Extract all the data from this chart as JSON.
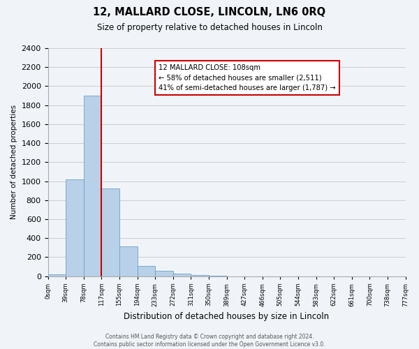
{
  "title": "12, MALLARD CLOSE, LINCOLN, LN6 0RQ",
  "subtitle": "Size of property relative to detached houses in Lincoln",
  "xlabel": "Distribution of detached houses by size in Lincoln",
  "ylabel": "Number of detached properties",
  "bin_labels": [
    "0sqm",
    "39sqm",
    "78sqm",
    "117sqm",
    "155sqm",
    "194sqm",
    "233sqm",
    "272sqm",
    "311sqm",
    "350sqm",
    "389sqm",
    "427sqm",
    "466sqm",
    "505sqm",
    "544sqm",
    "583sqm",
    "622sqm",
    "661sqm",
    "700sqm",
    "738sqm",
    "777sqm"
  ],
  "bar_values": [
    20,
    1020,
    1900,
    920,
    315,
    110,
    55,
    30,
    15,
    5,
    0,
    0,
    0,
    0,
    0,
    0,
    0,
    0,
    0,
    0
  ],
  "bar_color": "#b8d0e8",
  "bar_edge_color": "#6fa0c8",
  "vline_x": 3,
  "vline_color": "#cc0000",
  "ylim": [
    0,
    2400
  ],
  "yticks": [
    0,
    200,
    400,
    600,
    800,
    1000,
    1200,
    1400,
    1600,
    1800,
    2000,
    2200,
    2400
  ],
  "annotation_title": "12 MALLARD CLOSE: 108sqm",
  "annotation_line1": "← 58% of detached houses are smaller (2,511)",
  "annotation_line2": "41% of semi-detached houses are larger (1,787) →",
  "annotation_box_color": "#ffffff",
  "annotation_box_edge": "#cc0000",
  "footer_line1": "Contains HM Land Registry data © Crown copyright and database right 2024.",
  "footer_line2": "Contains public sector information licensed under the Open Government Licence v3.0.",
  "bg_color": "#f0f4f8",
  "grid_color": "#cccccc"
}
